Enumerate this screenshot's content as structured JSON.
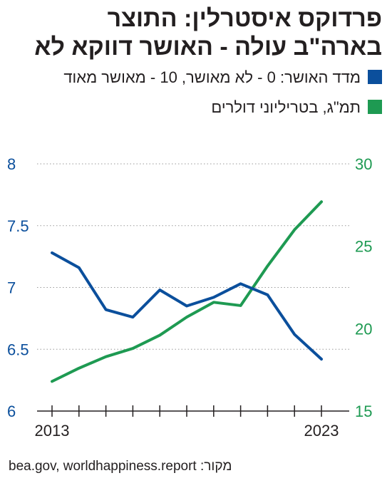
{
  "title_line1": "פרדוקס איסטרלין: התוצר",
  "title_line2": "בארה\"ב עולה - האושר דווקא לא",
  "source": "bea.gov, worldhappiness.report :מקור",
  "colors": {
    "happiness": "#0b4f9c",
    "gdp": "#1e9a52",
    "grid": "#9a9a9a",
    "axis": "#231f20"
  },
  "chart_data": {
    "type": "line",
    "x": [
      2013,
      2014,
      2015,
      2016,
      2017,
      2018,
      2019,
      2020,
      2021,
      2022,
      2023
    ],
    "x_tick_labels": [
      "2013",
      "2023"
    ],
    "grid": true,
    "series": [
      {
        "name": "מדד האושר: 0 - לא מאושר, 10 - מאושר מאוד",
        "axis": "left",
        "values": [
          7.28,
          7.16,
          6.82,
          6.76,
          6.98,
          6.85,
          6.92,
          7.03,
          6.94,
          6.62,
          6.42
        ]
      },
      {
        "name": "תמ\"ג, בטריליוני דולרים",
        "axis": "right",
        "values": [
          16.8,
          17.6,
          18.3,
          18.8,
          19.6,
          20.7,
          21.6,
          21.4,
          23.8,
          26.0,
          27.7
        ]
      }
    ],
    "left_axis": {
      "ylim": [
        6,
        8
      ],
      "ticks": [
        "6",
        "6.5",
        "7",
        "7.5",
        "8"
      ]
    },
    "right_axis": {
      "ylim": [
        15,
        30
      ],
      "ticks": [
        "15",
        "20",
        "25",
        "30"
      ]
    }
  }
}
